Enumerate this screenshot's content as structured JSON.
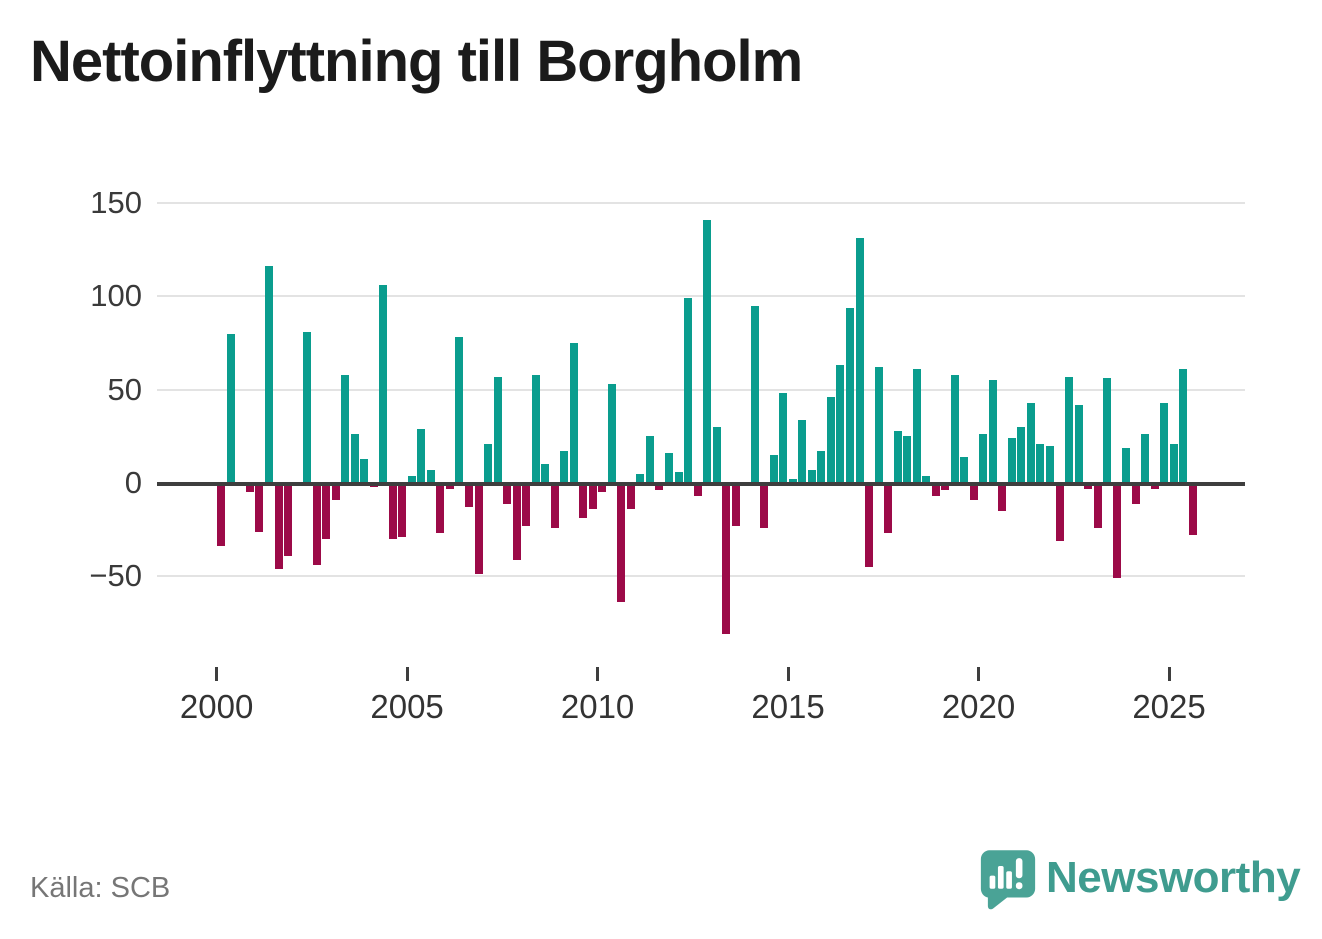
{
  "title": "Nettoinflyttning till Borgholm",
  "source": "Källa: SCB",
  "branding": {
    "logo_text": "Newsworthy",
    "logo_icon": "newsworthy-speech-bubble-chart-icon"
  },
  "colors": {
    "positive": "#0a9d8e",
    "negative": "#9c0a48",
    "grid": "#e3e3e3",
    "zero_axis": "#3e3e3e",
    "tick_label": "#3a3a3a",
    "title_text": "#1b1b1b",
    "source_text": "#767676",
    "brand_teal": "#3f9c8f",
    "brand_bubble": "#4aa396"
  },
  "chart_data": {
    "type": "bar",
    "title": "Nettoinflyttning till Borgholm",
    "frequency": "quarterly",
    "period_start": "2000 Q1",
    "period_end": "2025 Q3",
    "grid": "horizontal",
    "ylim": [
      -90,
      158
    ],
    "y_ticks": [
      150,
      100,
      50,
      0,
      -50
    ],
    "y_tick_labels": [
      "150",
      "100",
      "50",
      "0",
      "−50"
    ],
    "x_tick_years": [
      2000,
      2005,
      2010,
      2015,
      2020,
      2025
    ],
    "x_tick_labels": [
      "2000",
      "2005",
      "2010",
      "2015",
      "2020",
      "2025"
    ],
    "positive_color": "#0a9d8e",
    "negative_color": "#9c0a48",
    "values": [
      -34,
      80,
      0,
      -5,
      -26,
      116,
      -46,
      -39,
      0,
      81,
      -44,
      -30,
      -9,
      58,
      26,
      13,
      -2,
      106,
      -30,
      -29,
      4,
      29,
      7,
      -27,
      -3,
      78,
      -13,
      -49,
      21,
      57,
      -11,
      -41,
      -23,
      58,
      10,
      -24,
      17,
      75,
      -19,
      -14,
      -5,
      53,
      -64,
      -14,
      5,
      25,
      -4,
      16,
      6,
      99,
      -7,
      141,
      30,
      -81,
      -23,
      0,
      95,
      -24,
      15,
      48,
      2,
      34,
      7,
      17,
      46,
      63,
      94,
      131,
      -45,
      62,
      -27,
      28,
      25,
      61,
      4,
      -7,
      -4,
      58,
      14,
      -9,
      26,
      55,
      -15,
      24,
      30,
      43,
      21,
      20,
      -31,
      57,
      42,
      -3,
      -24,
      56,
      -51,
      19,
      -11,
      26,
      -3,
      43,
      21,
      61,
      -28
    ]
  }
}
